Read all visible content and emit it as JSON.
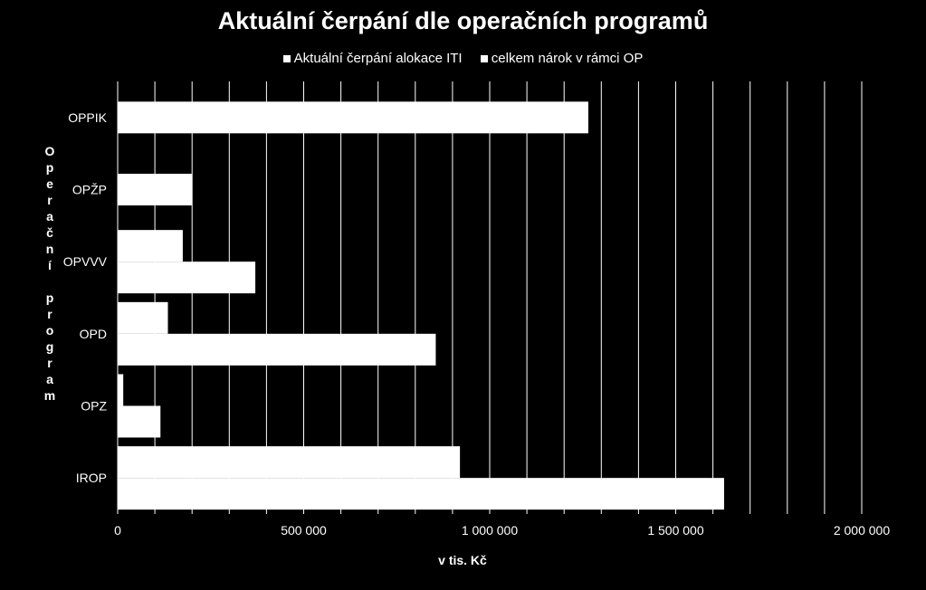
{
  "chart_data": {
    "type": "bar",
    "orientation": "horizontal",
    "title": "Aktuální čerpání dle operačních programů",
    "xlabel": "v tis. Kč",
    "ylabel": "Operační program",
    "categories": [
      "OPPIK",
      "OPŽP",
      "OPVVV",
      "OPD",
      "OPZ",
      "IROP"
    ],
    "series": [
      {
        "name": "Aktuální čerpání alokace ITI",
        "values": [
          0,
          0,
          175000,
          135000,
          15000,
          920000
        ]
      },
      {
        "name": "celkem nárok v rámci OP",
        "values": [
          1265000,
          200000,
          370000,
          855000,
          115000,
          1630000
        ]
      }
    ],
    "xlim": [
      0,
      2000000
    ],
    "x_ticks": [
      "0",
      "500 000",
      "1 000 000",
      "1 500 000",
      "2 000 000"
    ],
    "x_tick_values": [
      0,
      500000,
      1000000,
      1500000,
      2000000
    ],
    "grid": true,
    "legend_position": "top",
    "colors": {
      "background": "#000000",
      "bars": "#ffffff",
      "grid": "#ffffff",
      "text": "#ffffff"
    }
  }
}
